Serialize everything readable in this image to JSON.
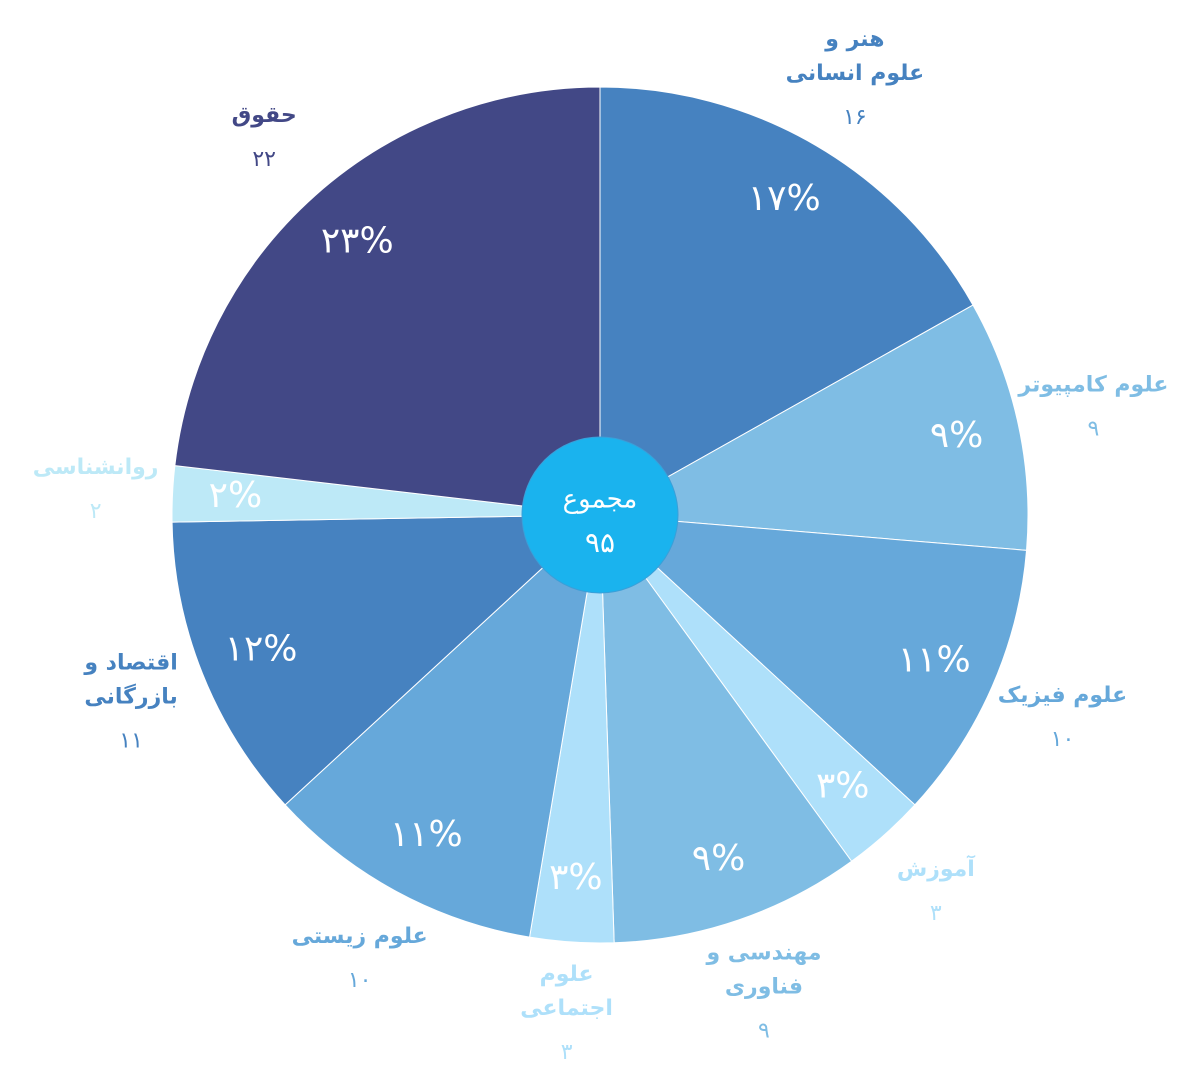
{
  "chart_data": {
    "type": "pie",
    "categories": [
      [
        "هنر و",
        "علوم انسانی"
      ],
      [
        "علوم کامپیوتر"
      ],
      [
        "علوم فیزیک"
      ],
      [
        "آموزش"
      ],
      [
        "مهندسی و",
        "فناوری"
      ],
      [
        "علوم",
        "اجتماعی"
      ],
      [
        "علوم زیستی"
      ],
      [
        "اقتصاد و",
        "بازرگانی"
      ],
      [
        "روانشناسی"
      ],
      [
        "حقوق"
      ]
    ],
    "values": [
      16,
      9,
      10,
      3,
      9,
      3,
      10,
      11,
      2,
      22
    ],
    "value_labels": [
      "۱۶",
      "۹",
      "۱۰",
      "۳",
      "۹",
      "۳",
      "۱۰",
      "۱۱",
      "۲",
      "۲۲"
    ],
    "percents": [
      17,
      9,
      11,
      3,
      9,
      3,
      11,
      12,
      2,
      23
    ],
    "percent_labels": [
      "۱۷%",
      "۹%",
      "۱۱%",
      "۳%",
      "۹%",
      "۳%",
      "۱۱%",
      "۱۲%",
      "۲%",
      "۲۳%"
    ],
    "colors": [
      "#4682c0",
      "#7fbde4",
      "#66a8da",
      "#aee0fa",
      "#7fbde4",
      "#aee0fa",
      "#66a8da",
      "#4682c0",
      "#bde9f7",
      "#424886"
    ],
    "total_title": "مجموع",
    "total": 95,
    "total_value_label": "۹۵",
    "total_color": "#1ab3ee"
  }
}
